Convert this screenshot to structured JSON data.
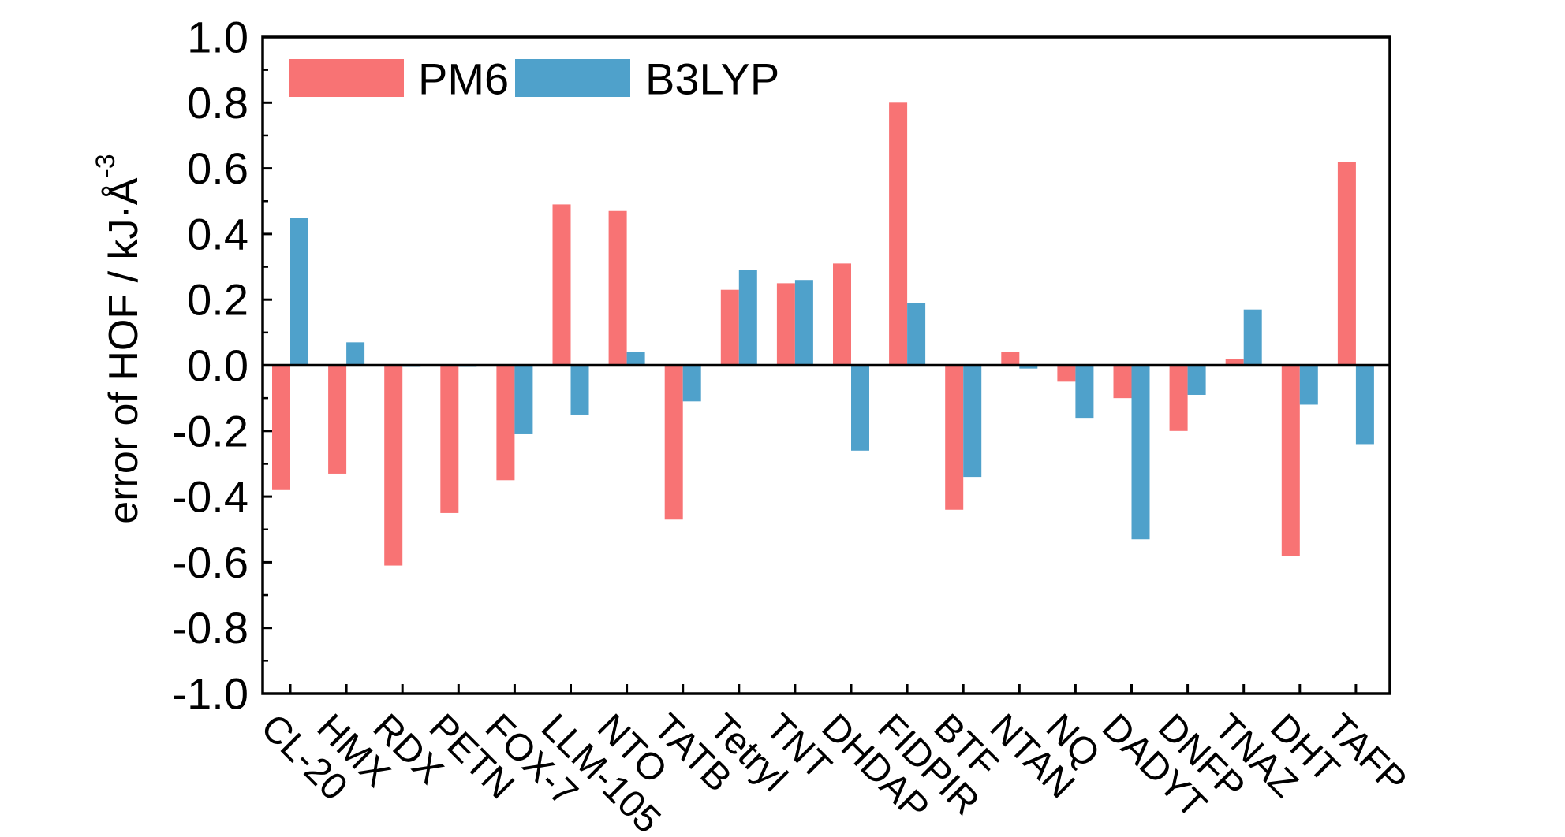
{
  "chart_data": {
    "type": "bar",
    "title": "",
    "xlabel": "",
    "ylabel": "error of HOF / kJ·Å",
    "ylabel_superscript": "-3",
    "ylim": [
      -1.0,
      1.0
    ],
    "yticks": [
      "-1.0",
      "-0.8",
      "-0.6",
      "-0.4",
      "-0.2",
      "0.0",
      "0.2",
      "0.4",
      "0.6",
      "0.8",
      "1.0"
    ],
    "grid": false,
    "legend_position": "top-left",
    "categories": [
      "CL-20",
      "HMX",
      "RDX",
      "PETN",
      "FOX-7",
      "LLM-105",
      "NTO",
      "TATB",
      "Tetryl",
      "TNT",
      "DHDAP",
      "FIDPIR",
      "BTF",
      "NTAN",
      "NQ",
      "DADYT",
      "DNFP",
      "TNAZ",
      "DHT",
      "TAFP"
    ],
    "series": [
      {
        "name": "PM6",
        "color": "#F87374",
        "values": [
          -0.38,
          -0.33,
          -0.61,
          -0.45,
          -0.35,
          0.49,
          0.47,
          -0.47,
          0.23,
          0.25,
          0.31,
          0.8,
          -0.44,
          0.04,
          -0.05,
          -0.1,
          -0.2,
          0.02,
          -0.58,
          0.62
        ]
      },
      {
        "name": "B3LYP",
        "color": "#4FA1CB",
        "values": [
          0.45,
          0.07,
          0.0,
          0.0,
          -0.21,
          -0.15,
          0.04,
          -0.11,
          0.29,
          0.26,
          -0.26,
          0.19,
          -0.34,
          -0.01,
          -0.16,
          -0.53,
          -0.09,
          0.17,
          -0.12,
          -0.24
        ]
      }
    ]
  }
}
